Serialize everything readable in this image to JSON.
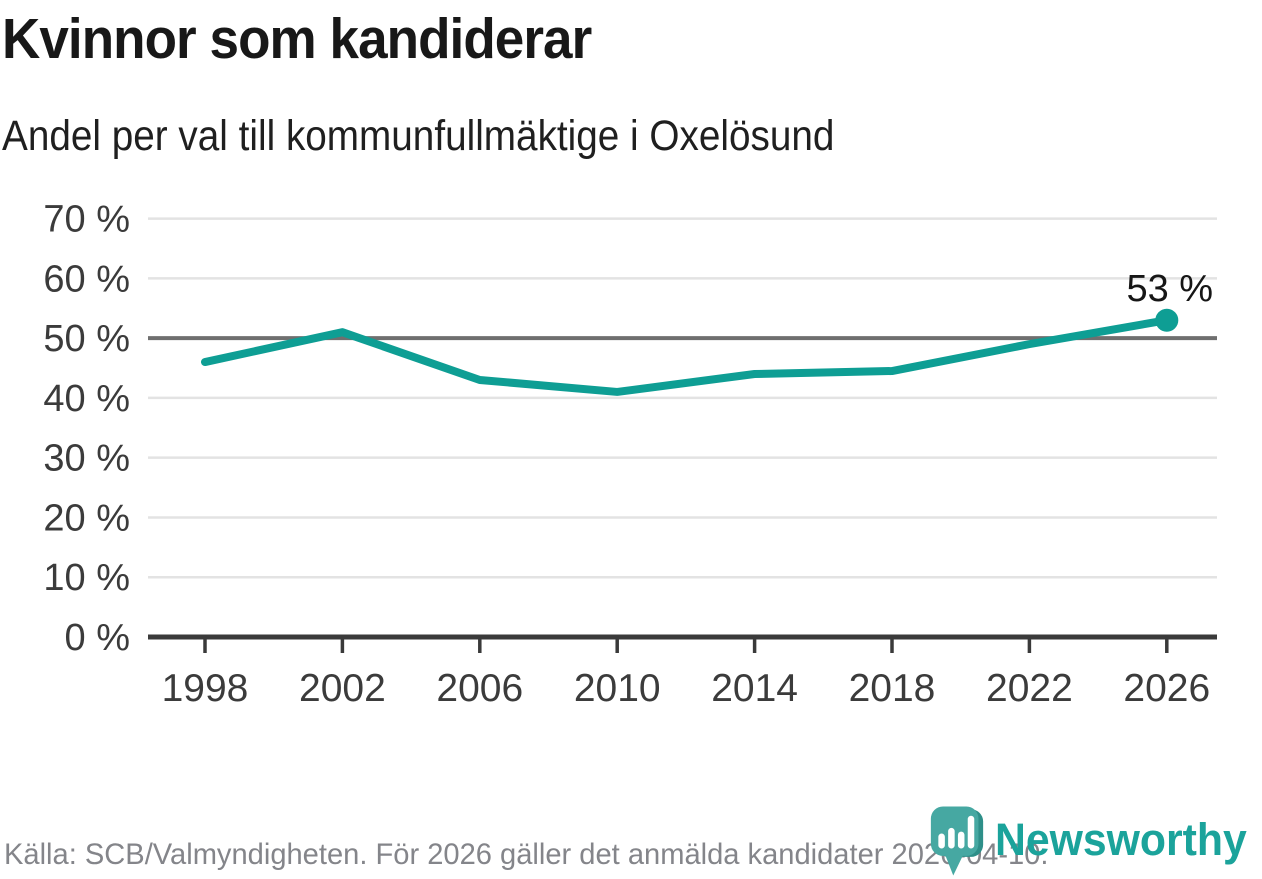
{
  "header": {
    "title": "Kvinnor som kandiderar",
    "subtitle": "Andel per val till kommunfullmäktige i Oxelösund"
  },
  "chart_data": {
    "type": "line",
    "title": "Kvinnor som kandiderar",
    "subtitle": "Andel per val till kommunfullmäktige i Oxelösund",
    "categories": [
      "1998",
      "2002",
      "2006",
      "2010",
      "2014",
      "2018",
      "2022",
      "2026"
    ],
    "values": [
      46,
      51,
      43,
      41,
      44,
      44.5,
      49,
      53
    ],
    "unit": "%",
    "ylim": [
      0,
      70
    ],
    "y_ticks": [
      0,
      10,
      20,
      30,
      40,
      50,
      60,
      70
    ],
    "y_tick_suffix": " %",
    "reference_line": 50,
    "grid": "horizontal-only",
    "legend": "none",
    "end_label": "53 %",
    "colors": {
      "line": "#0e9e94",
      "axis": "#3a3a3a",
      "grid": "#e3e3e3",
      "reference_line": "#6f6f6f",
      "tick_text": "#3b3b3b",
      "end_label_text": "#161616"
    }
  },
  "footer": {
    "source": "Källa: SCB/Valmyndigheten. För 2026 gäller det anmälda kandidater 2026-04-10.",
    "brand": "Newsworthy",
    "brand_color": "#1ba39b",
    "logo_bubble_color": "#46a8a2",
    "logo_shadow_color": "#2e8f89"
  }
}
